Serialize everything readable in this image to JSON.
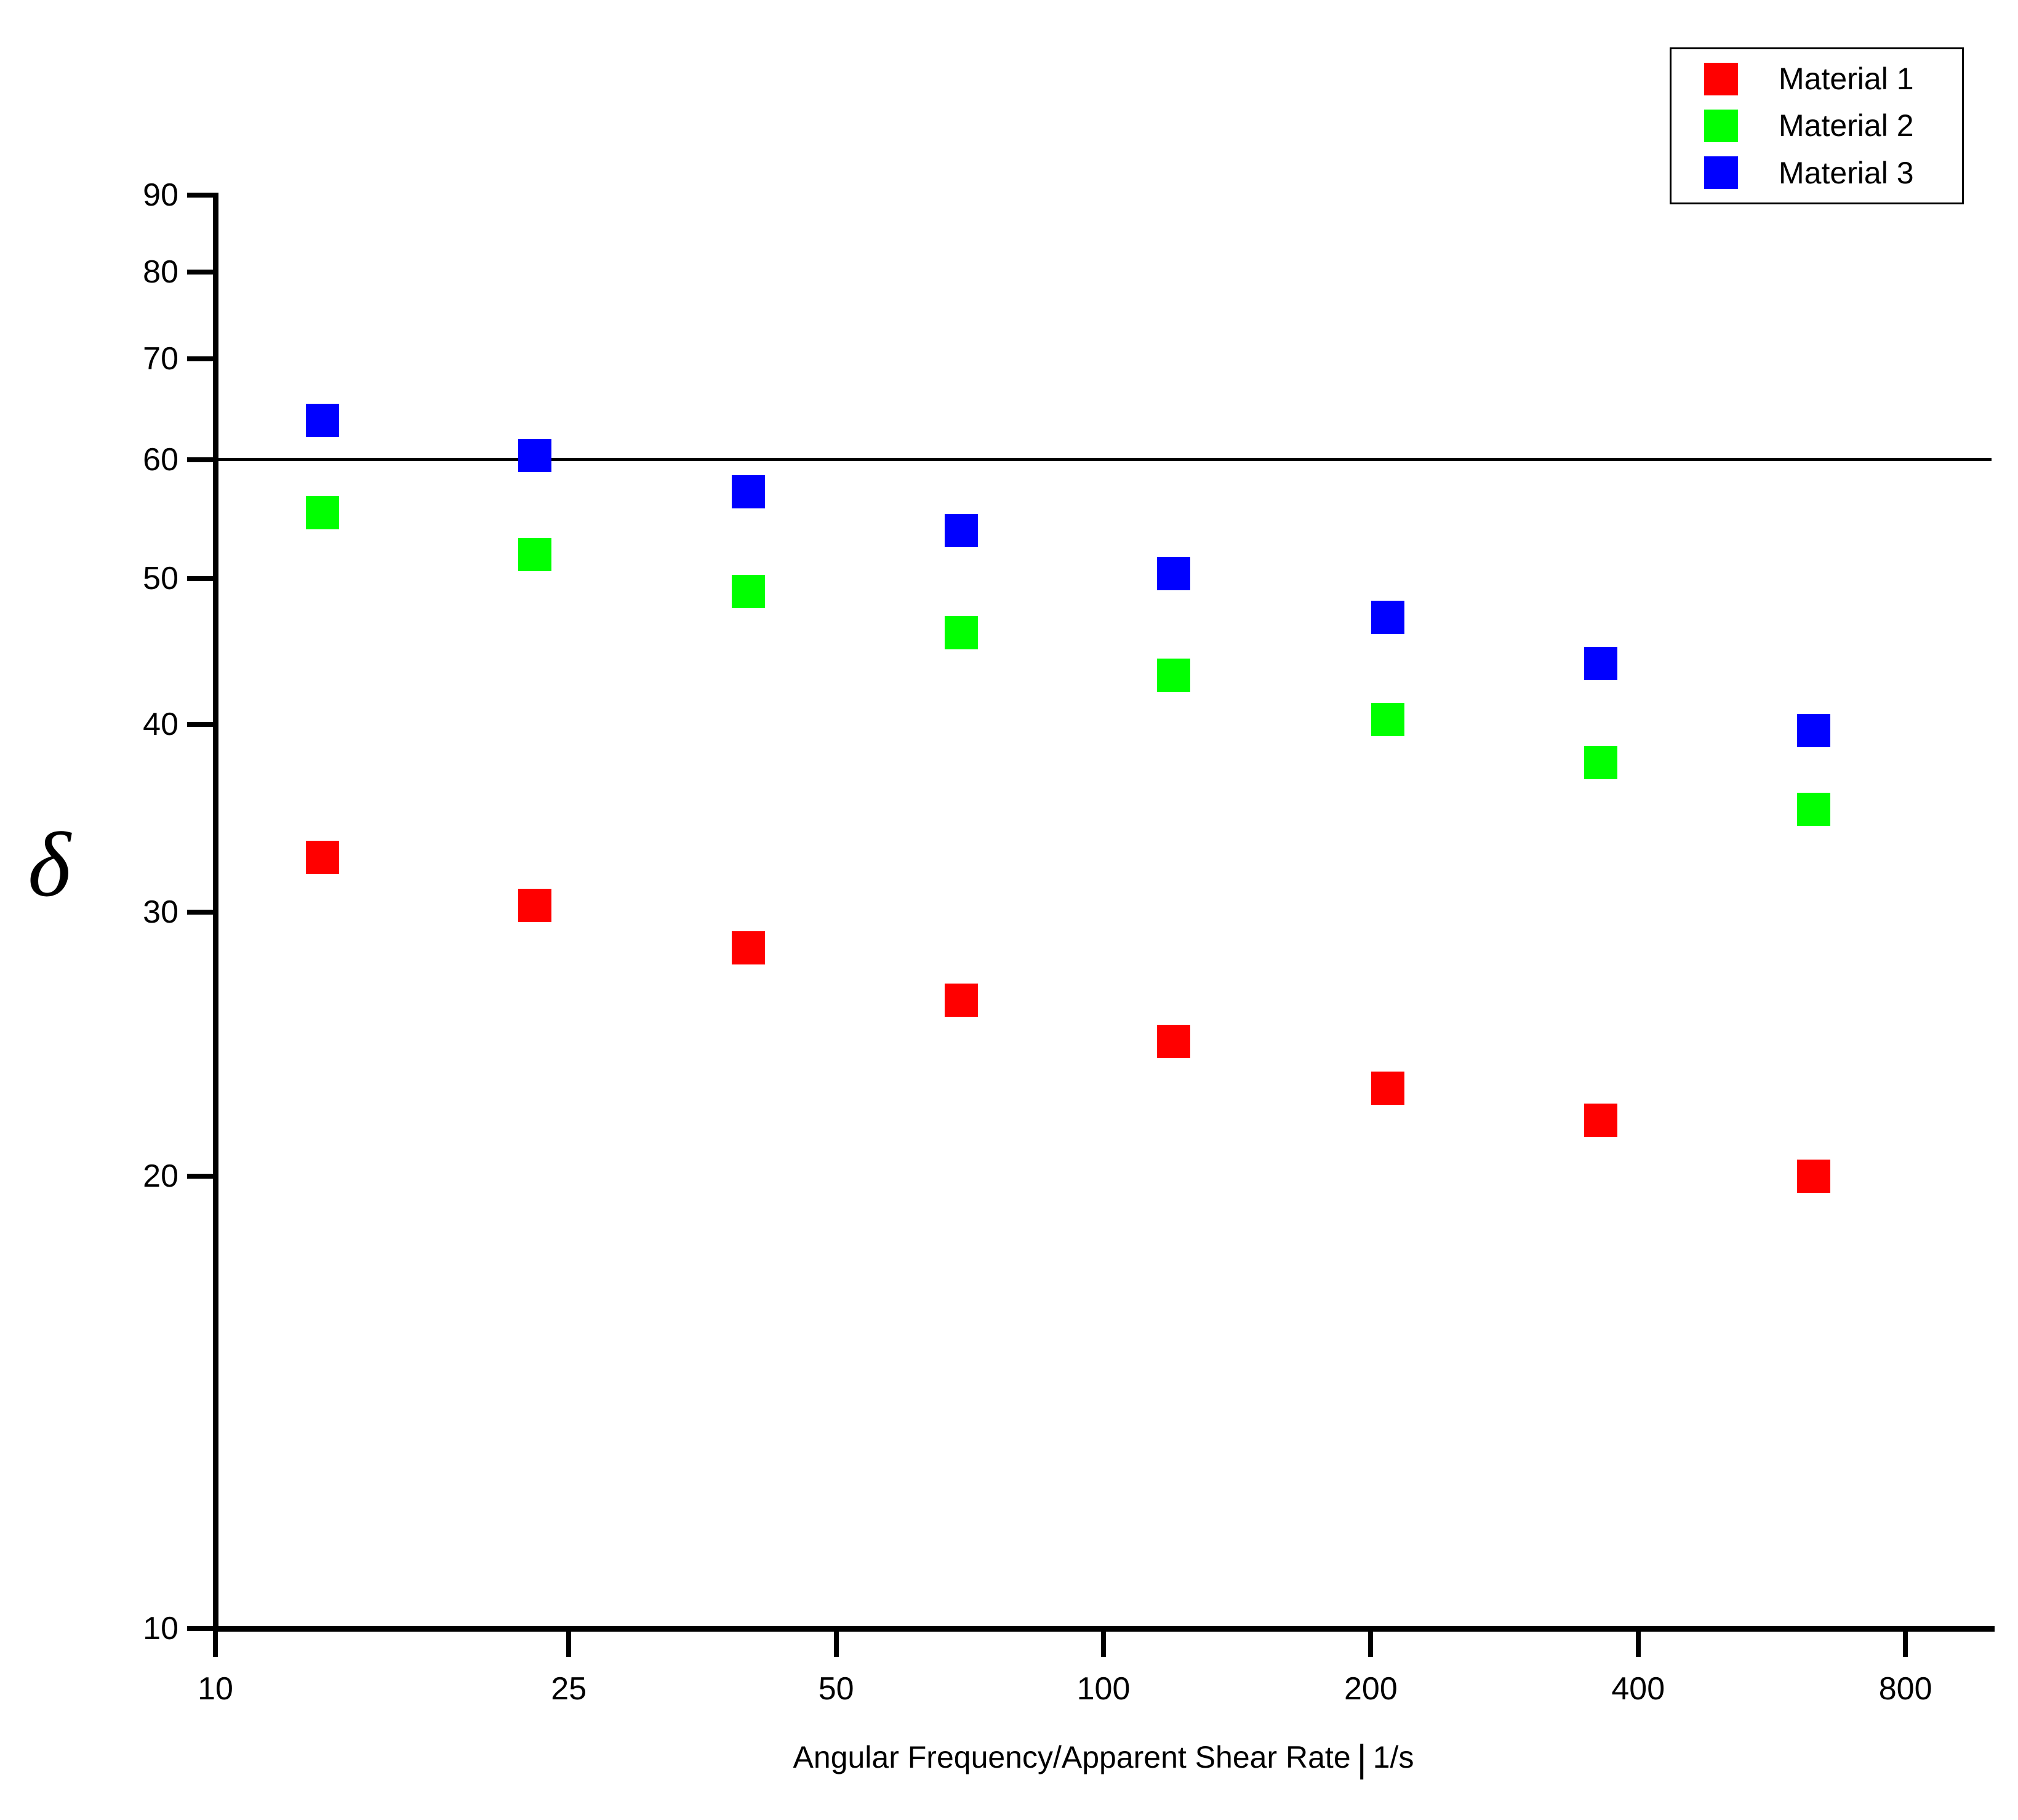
{
  "chart_data": {
    "type": "scatter",
    "marker": "square",
    "grid": false,
    "x_scale": "log",
    "y_scale": "log",
    "xlim": [
      10,
      1000
    ],
    "ylim": [
      10,
      90
    ],
    "x_ticks": [
      10,
      25,
      50,
      100,
      200,
      400,
      800
    ],
    "y_ticks": [
      90,
      80,
      70,
      60,
      50,
      40,
      30,
      20,
      10
    ],
    "reference_line_y": 60,
    "xlabel": "Angular Frequency/Apparent Shear Rate",
    "xlabel_separator": "|",
    "xlabel_unit": "1/s",
    "ylabel": "δ",
    "x": [
      13.2,
      22.9,
      39.8,
      69.2,
      120,
      209,
      363,
      631
    ],
    "series": [
      {
        "name": "Material 1",
        "color": "#ff0000",
        "values": [
          32.6,
          30.3,
          28.4,
          26.2,
          24.6,
          22.9,
          21.8,
          20.0
        ]
      },
      {
        "name": "Material 2",
        "color": "#00ff00",
        "values": [
          55.3,
          51.9,
          49.0,
          46.0,
          43.1,
          40.3,
          37.7,
          35.1
        ]
      },
      {
        "name": "Material 3",
        "color": "#0000ff",
        "values": [
          63.7,
          60.4,
          57.1,
          53.8,
          50.4,
          47.1,
          43.9,
          39.6
        ]
      }
    ],
    "legend": {
      "position": "top-right",
      "entries": [
        "Material 1",
        "Material 2",
        "Material 3"
      ]
    }
  }
}
